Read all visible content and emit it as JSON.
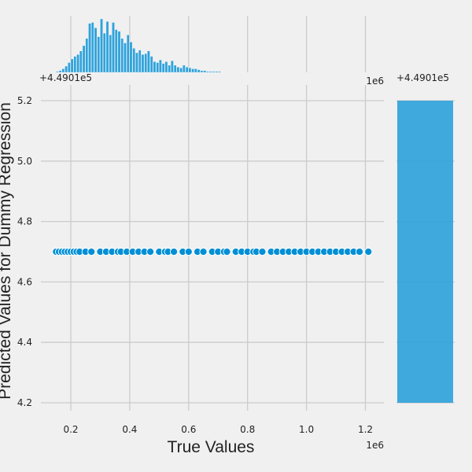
{
  "colors": {
    "background": "#f0f0f0",
    "grid": "#cbcbcb",
    "point": "#008fd5",
    "histogram": "#30a2da"
  },
  "chart_data": {
    "type": "scatter",
    "subtype": "jointplot",
    "xlabel": "True Values",
    "ylabel": "Predicted Values for Dummy Regression",
    "x_scale_label": "1e6",
    "y_offset_label": "+4.4901e5",
    "xlim": [
      0.1,
      1.25
    ],
    "ylim": [
      4.18,
      5.23
    ],
    "x_ticks": [
      "0.2",
      "0.4",
      "0.6",
      "0.8",
      "1.0",
      "1.2"
    ],
    "x_tick_values": [
      0.2,
      0.4,
      0.6,
      0.8,
      1.0,
      1.2
    ],
    "y_ticks": [
      "4.2",
      "4.4",
      "4.6",
      "4.8",
      "5.0",
      "5.2"
    ],
    "y_tick_values": [
      4.2,
      4.4,
      4.6,
      4.8,
      5.0,
      5.2
    ],
    "grid": true,
    "points": {
      "y": 4.7,
      "x": [
        0.15,
        0.16,
        0.17,
        0.18,
        0.19,
        0.2,
        0.21,
        0.22,
        0.23,
        0.25,
        0.27,
        0.3,
        0.32,
        0.34,
        0.36,
        0.37,
        0.39,
        0.41,
        0.43,
        0.45,
        0.47,
        0.5,
        0.52,
        0.53,
        0.55,
        0.58,
        0.6,
        0.63,
        0.65,
        0.68,
        0.7,
        0.72,
        0.73,
        0.76,
        0.78,
        0.8,
        0.82,
        0.83,
        0.85,
        0.88,
        0.9,
        0.92,
        0.94,
        0.96,
        0.98,
        1.0,
        1.02,
        1.04,
        1.06,
        1.08,
        1.1,
        1.12,
        1.14,
        1.16,
        1.18,
        1.21
      ]
    },
    "x_histogram": {
      "bin_start": 0.15,
      "bin_width": 0.01,
      "counts": [
        1,
        2,
        4,
        7,
        11,
        15,
        18,
        20,
        24,
        30,
        38,
        55,
        56,
        50,
        40,
        60,
        44,
        57,
        42,
        56,
        48,
        46,
        38,
        33,
        42,
        34,
        27,
        22,
        25,
        20,
        21,
        24,
        18,
        12,
        11,
        14,
        10,
        12,
        8,
        13,
        8,
        6,
        5,
        8,
        6,
        5,
        4,
        4,
        3,
        2,
        2,
        1,
        1,
        1,
        1,
        1
      ]
    },
    "y_histogram": {
      "bin_range": [
        4.2,
        5.2
      ],
      "relative_width": 1.0
    }
  }
}
